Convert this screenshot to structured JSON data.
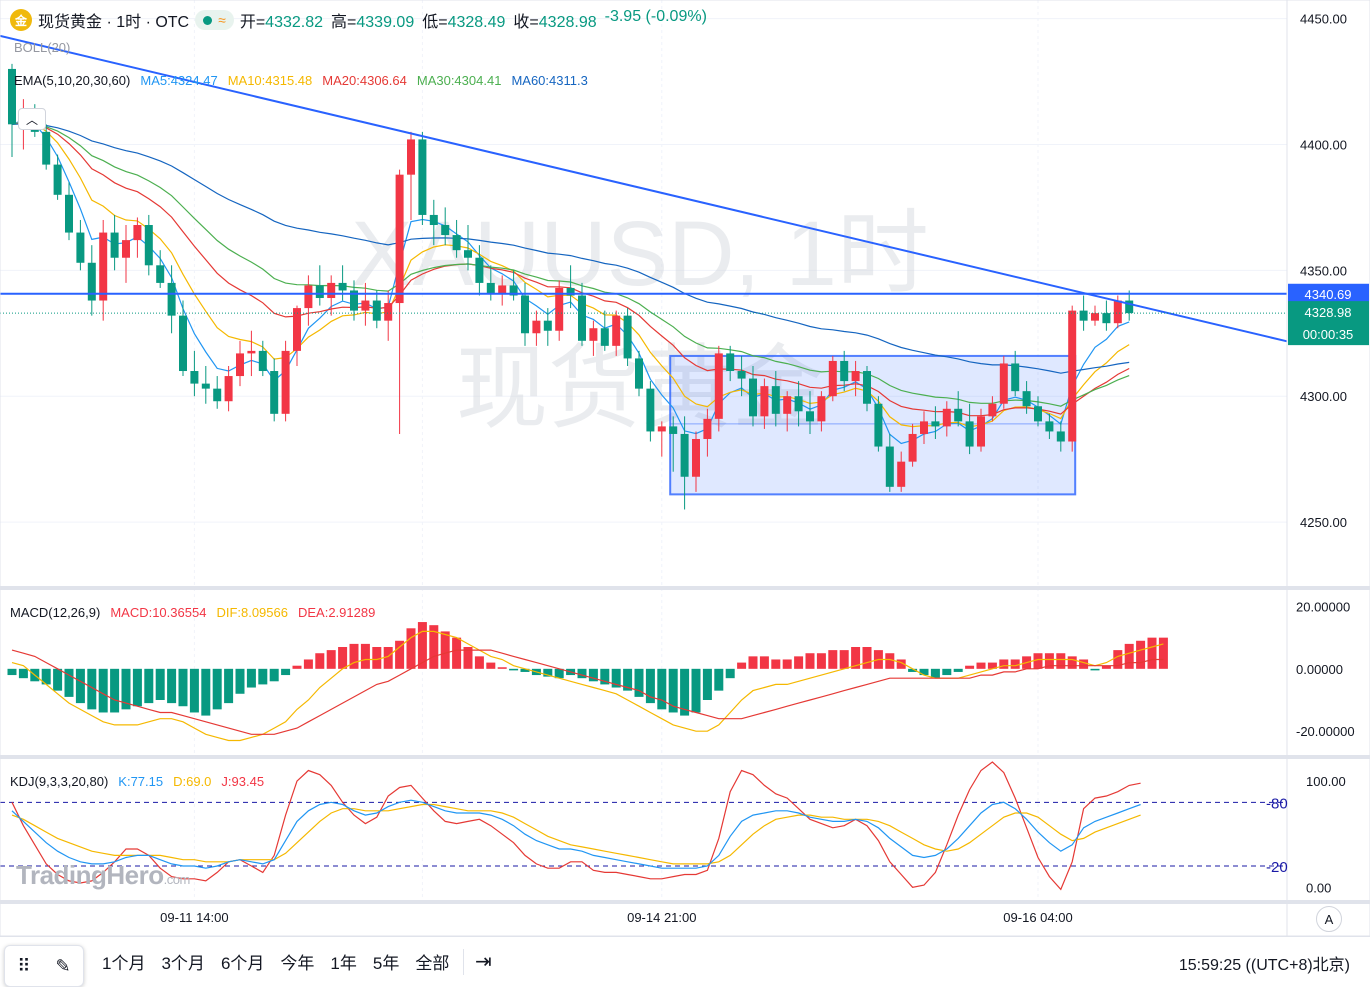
{
  "header": {
    "symbol": "现货黄金 · 1时 · OTC",
    "open_label": "开=",
    "open": "4332.82",
    "high_label": "高=",
    "high": "4339.09",
    "low_label": "低=",
    "low": "4328.49",
    "close_label": "收=",
    "close": "4328.98",
    "change": "-3.95 (-0.09%)"
  },
  "indicators": {
    "boll": "BOLL(20)",
    "ema": "EMA(5,10,20,30,60)",
    "ma5": "MA5:4324.47",
    "ma10": "MA10:4315.48",
    "ma20": "MA20:4306.64",
    "ma30": "MA30:4304.41",
    "ma60": "MA60:4311.3",
    "macd_title": "MACD(12,26,9)",
    "macd_val": "MACD:10.36554",
    "dif_val": "DIF:8.09566",
    "dea_val": "DEA:2.91289",
    "kdj_title": "KDJ(9,3,3,20,80)",
    "k_val": "K:77.15",
    "d_val": "D:69.0",
    "j_val": "J:93.45"
  },
  "price_axis": {
    "ticks": [
      "4450.00",
      "4400.00",
      "4350.00",
      "4300.00",
      "4250.00"
    ],
    "hline_label": "4340.69",
    "last_price": "4328.98",
    "countdown": "00:00:35"
  },
  "macd_axis": {
    "ticks": [
      "20.00000",
      "0.00000",
      "-20.00000"
    ]
  },
  "kdj_axis": {
    "ticks": [
      "100.00",
      "0.00"
    ],
    "levels": [
      "80",
      "20"
    ]
  },
  "time_axis": {
    "labels": [
      "09-11 14:00",
      "09-14 21:00",
      "09-16 04:00"
    ]
  },
  "watermark": {
    "symbol": "XAUUSD, 1时",
    "name": "现货黄金"
  },
  "logo_text": "TradingHero",
  "logo_suffix": ".com",
  "bottom_bar": {
    "ranges": [
      "1个月",
      "3个月",
      "6个月",
      "今年",
      "1年",
      "5年",
      "全部"
    ],
    "clock": "15:59:25 ((UTC+8)北京)",
    "autoscale": "A"
  },
  "colors": {
    "up": "#f23645",
    "down": "#089981",
    "ma5": "#2196f3",
    "ma10": "#f5b800",
    "ma20": "#e53935",
    "ma30": "#4caf50",
    "ma60": "#1565c0",
    "trend": "#2962ff"
  },
  "chart_data": {
    "type": "candlestick",
    "symbol": "XAUUSD",
    "timeframe": "1h",
    "x": [
      "09-11 14:00",
      "09-14 21:00",
      "09-16 04:00"
    ],
    "ylim": [
      4225,
      4455
    ],
    "candles": [
      [
        4430,
        4432,
        4395,
        4408
      ],
      [
        4408,
        4418,
        4398,
        4413
      ],
      [
        4413,
        4416,
        4403,
        4405
      ],
      [
        4405,
        4408,
        4390,
        4392
      ],
      [
        4392,
        4396,
        4378,
        4380
      ],
      [
        4380,
        4385,
        4362,
        4365
      ],
      [
        4365,
        4370,
        4350,
        4353
      ],
      [
        4353,
        4360,
        4332,
        4338
      ],
      [
        4338,
        4370,
        4330,
        4365
      ],
      [
        4365,
        4372,
        4350,
        4355
      ],
      [
        4355,
        4368,
        4345,
        4362
      ],
      [
        4362,
        4371,
        4355,
        4368
      ],
      [
        4368,
        4372,
        4348,
        4352
      ],
      [
        4352,
        4358,
        4343,
        4345
      ],
      [
        4345,
        4352,
        4325,
        4332
      ],
      [
        4332,
        4338,
        4308,
        4310
      ],
      [
        4310,
        4318,
        4300,
        4305
      ],
      [
        4305,
        4312,
        4297,
        4303
      ],
      [
        4303,
        4308,
        4295,
        4298
      ],
      [
        4298,
        4312,
        4294,
        4308
      ],
      [
        4308,
        4322,
        4304,
        4317
      ],
      [
        4317,
        4326,
        4308,
        4318
      ],
      [
        4318,
        4322,
        4308,
        4310
      ],
      [
        4310,
        4315,
        4290,
        4293
      ],
      [
        4293,
        4322,
        4290,
        4318
      ],
      [
        4318,
        4336,
        4312,
        4335
      ],
      [
        4335,
        4348,
        4328,
        4344
      ],
      [
        4344,
        4352,
        4336,
        4339
      ],
      [
        4339,
        4348,
        4332,
        4345
      ],
      [
        4345,
        4352,
        4338,
        4342
      ],
      [
        4342,
        4346,
        4330,
        4334
      ],
      [
        4334,
        4345,
        4328,
        4338
      ],
      [
        4338,
        4342,
        4327,
        4330
      ],
      [
        4330,
        4342,
        4322,
        4337
      ],
      [
        4337,
        4390,
        4285,
        4388
      ],
      [
        4388,
        4405,
        4370,
        4402
      ],
      [
        4402,
        4405,
        4368,
        4372
      ],
      [
        4372,
        4378,
        4360,
        4368
      ],
      [
        4368,
        4375,
        4360,
        4364
      ],
      [
        4364,
        4370,
        4355,
        4358
      ],
      [
        4358,
        4368,
        4350,
        4355
      ],
      [
        4355,
        4360,
        4340,
        4345
      ],
      [
        4345,
        4352,
        4338,
        4341
      ],
      [
        4341,
        4348,
        4336,
        4344
      ],
      [
        4344,
        4350,
        4338,
        4340
      ],
      [
        4340,
        4345,
        4320,
        4325
      ],
      [
        4325,
        4334,
        4320,
        4330
      ],
      [
        4330,
        4335,
        4320,
        4326
      ],
      [
        4326,
        4346,
        4322,
        4343
      ],
      [
        4343,
        4352,
        4335,
        4340
      ],
      [
        4340,
        4345,
        4320,
        4322
      ],
      [
        4322,
        4330,
        4316,
        4327
      ],
      [
        4327,
        4334,
        4318,
        4320
      ],
      [
        4320,
        4334,
        4316,
        4332
      ],
      [
        4332,
        4335,
        4312,
        4315
      ],
      [
        4315,
        4318,
        4300,
        4303
      ],
      [
        4303,
        4306,
        4282,
        4286
      ],
      [
        4286,
        4290,
        4276,
        4288
      ],
      [
        4288,
        4292,
        4270,
        4285
      ],
      [
        4285,
        4292,
        4255,
        4268
      ],
      [
        4268,
        4286,
        4262,
        4283
      ],
      [
        4283,
        4295,
        4276,
        4291
      ],
      [
        4291,
        4320,
        4286,
        4317
      ],
      [
        4317,
        4320,
        4306,
        4310
      ],
      [
        4310,
        4316,
        4300,
        4307
      ],
      [
        4307,
        4312,
        4288,
        4292
      ],
      [
        4292,
        4307,
        4287,
        4304
      ],
      [
        4304,
        4310,
        4288,
        4293
      ],
      [
        4293,
        4302,
        4286,
        4300
      ],
      [
        4300,
        4306,
        4288,
        4294
      ],
      [
        4294,
        4302,
        4285,
        4290
      ],
      [
        4290,
        4302,
        4286,
        4300
      ],
      [
        4300,
        4316,
        4298,
        4314
      ],
      [
        4314,
        4318,
        4302,
        4306
      ],
      [
        4306,
        4314,
        4300,
        4310
      ],
      [
        4310,
        4312,
        4294,
        4297
      ],
      [
        4297,
        4300,
        4278,
        4280
      ],
      [
        4280,
        4285,
        4262,
        4264
      ],
      [
        4264,
        4278,
        4262,
        4274
      ],
      [
        4274,
        4289,
        4272,
        4285
      ],
      [
        4285,
        4294,
        4281,
        4290
      ],
      [
        4290,
        4296,
        4283,
        4288
      ],
      [
        4288,
        4298,
        4284,
        4295
      ],
      [
        4295,
        4302,
        4288,
        4290
      ],
      [
        4290,
        4297,
        4277,
        4280
      ],
      [
        4280,
        4295,
        4278,
        4292
      ],
      [
        4292,
        4300,
        4290,
        4297
      ],
      [
        4297,
        4316,
        4295,
        4313
      ],
      [
        4313,
        4318,
        4300,
        4302
      ],
      [
        4302,
        4306,
        4293,
        4296
      ],
      [
        4296,
        4300,
        4288,
        4290
      ],
      [
        4290,
        4293,
        4283,
        4286
      ],
      [
        4286,
        4290,
        4278,
        4282
      ],
      [
        4282,
        4336,
        4278,
        4334
      ],
      [
        4334,
        4340,
        4326,
        4330
      ],
      [
        4330,
        4336,
        4328,
        4333
      ],
      [
        4333,
        4338,
        4326,
        4329
      ],
      [
        4329,
        4340,
        4327,
        4338
      ],
      [
        4338,
        4342,
        4330,
        4333
      ]
    ],
    "trendline": {
      "from": [
        0,
        4442
      ],
      "to": [
        107,
        4327
      ]
    },
    "horizontal_line": 4340.69,
    "range_box": {
      "from": 58,
      "to": 93,
      "top": 4316,
      "bottom": 4261,
      "mid": 4289
    },
    "macd": {
      "ylim": [
        -27,
        24
      ],
      "hist": [
        -2,
        -3,
        -4,
        -5,
        -7,
        -9,
        -11,
        -13,
        -14,
        -14,
        -13,
        -12,
        -11,
        -10,
        -11,
        -12,
        -14,
        -15,
        -13,
        -11,
        -8,
        -6,
        -5,
        -4,
        -2,
        1,
        3,
        5,
        6,
        7,
        8,
        8,
        7,
        7,
        9,
        13,
        15,
        14,
        12,
        10,
        7,
        4,
        2,
        0.5,
        -0.5,
        -1,
        -2,
        -2.5,
        -3,
        -2,
        -3,
        -4,
        -5,
        -6,
        -7,
        -9,
        -11,
        -13,
        -14,
        -15,
        -14,
        -10,
        -7,
        -3,
        2,
        4,
        4,
        3,
        3,
        4,
        5,
        5,
        6,
        6,
        7,
        7,
        6,
        5,
        3,
        -1,
        -2,
        -3,
        -2,
        -1,
        1,
        2,
        2,
        3,
        3,
        4,
        5,
        5,
        5,
        4,
        3,
        -0.5,
        1,
        6,
        8,
        9,
        10,
        10
      ],
      "dif": [
        2,
        1,
        -2,
        -5,
        -8,
        -11,
        -13,
        -15,
        -17,
        -18,
        -18,
        -18,
        -17,
        -16,
        -16,
        -17,
        -19,
        -21,
        -22,
        -23,
        -23,
        -22,
        -21,
        -19,
        -17,
        -13,
        -10,
        -6,
        -3,
        0,
        2,
        3,
        3,
        4,
        7,
        10,
        12,
        12,
        11,
        10,
        8,
        6,
        4,
        3,
        1,
        0,
        -1,
        -2,
        -3,
        -4,
        -5,
        -6,
        -7,
        -8,
        -10,
        -12,
        -14,
        -16,
        -18,
        -19,
        -20,
        -20,
        -18,
        -14,
        -10,
        -7,
        -6,
        -5,
        -5,
        -4,
        -3,
        -2,
        -1,
        0,
        1,
        2,
        3,
        3,
        2,
        0,
        -2,
        -3,
        -3,
        -3,
        -2,
        -1,
        0,
        1,
        1,
        2,
        3,
        3,
        3,
        3,
        2,
        1,
        2,
        4,
        5,
        6,
        7,
        8
      ],
      "dea": [
        6,
        5,
        4,
        2,
        0,
        -2,
        -4,
        -6,
        -8,
        -10,
        -11,
        -12,
        -13,
        -14,
        -14,
        -15,
        -16,
        -17,
        -18,
        -19,
        -20,
        -21,
        -21,
        -21,
        -20,
        -19,
        -17,
        -15,
        -13,
        -11,
        -9,
        -7,
        -5,
        -4,
        -2,
        0,
        2,
        4,
        5,
        6,
        6,
        6,
        6,
        5,
        4,
        3,
        2,
        1,
        0,
        -1,
        -2,
        -3,
        -4,
        -5,
        -6,
        -7,
        -9,
        -10,
        -12,
        -13,
        -14,
        -15,
        -16,
        -16,
        -16,
        -15,
        -14,
        -13,
        -12,
        -11,
        -10,
        -9,
        -8,
        -7,
        -6,
        -5,
        -4,
        -3,
        -3,
        -3,
        -3,
        -3,
        -3,
        -3,
        -3,
        -2,
        -2,
        -1,
        -1,
        0,
        0,
        1,
        1,
        1,
        1,
        1,
        1,
        1,
        2,
        2,
        3,
        3
      ]
    },
    "kdj": {
      "ylim": [
        -12,
        118
      ],
      "k": [
        72,
        62,
        52,
        42,
        34,
        28,
        24,
        22,
        22,
        24,
        28,
        30,
        30,
        26,
        22,
        20,
        20,
        18,
        20,
        24,
        26,
        24,
        22,
        26,
        44,
        62,
        72,
        78,
        80,
        78,
        72,
        68,
        70,
        76,
        80,
        82,
        80,
        76,
        72,
        70,
        70,
        70,
        68,
        64,
        58,
        50,
        44,
        40,
        36,
        36,
        34,
        30,
        28,
        26,
        24,
        22,
        20,
        18,
        18,
        18,
        18,
        20,
        30,
        48,
        62,
        68,
        70,
        72,
        72,
        70,
        66,
        64,
        62,
        62,
        64,
        62,
        56,
        46,
        38,
        30,
        28,
        30,
        36,
        46,
        58,
        70,
        78,
        80,
        74,
        64,
        52,
        42,
        34,
        40,
        56,
        62,
        66,
        70,
        74,
        78
      ],
      "d": [
        68,
        64,
        58,
        52,
        46,
        42,
        38,
        34,
        32,
        30,
        30,
        30,
        30,
        30,
        28,
        26,
        26,
        24,
        24,
        24,
        26,
        26,
        26,
        26,
        32,
        42,
        52,
        62,
        70,
        74,
        74,
        72,
        72,
        72,
        74,
        76,
        78,
        78,
        76,
        74,
        72,
        72,
        72,
        70,
        66,
        60,
        54,
        48,
        44,
        40,
        38,
        36,
        34,
        32,
        30,
        28,
        26,
        24,
        22,
        22,
        22,
        22,
        24,
        30,
        40,
        50,
        58,
        64,
        66,
        68,
        68,
        66,
        66,
        64,
        64,
        64,
        62,
        58,
        52,
        46,
        40,
        36,
        34,
        36,
        42,
        50,
        58,
        66,
        70,
        70,
        66,
        58,
        50,
        44,
        46,
        52,
        56,
        60,
        64,
        68
      ],
      "j": [
        80,
        58,
        40,
        22,
        12,
        6,
        4,
        6,
        14,
        24,
        36,
        36,
        30,
        18,
        10,
        8,
        8,
        6,
        14,
        24,
        26,
        20,
        14,
        30,
        68,
        100,
        110,
        106,
        96,
        80,
        68,
        60,
        66,
        86,
        94,
        96,
        84,
        72,
        62,
        60,
        62,
        64,
        58,
        50,
        42,
        30,
        22,
        18,
        18,
        24,
        24,
        16,
        14,
        14,
        12,
        10,
        8,
        8,
        10,
        12,
        12,
        16,
        46,
        90,
        110,
        106,
        96,
        88,
        84,
        74,
        64,
        60,
        56,
        58,
        64,
        58,
        44,
        24,
        12,
        0,
        2,
        14,
        40,
        68,
        92,
        110,
        118,
        108,
        84,
        56,
        28,
        10,
        -2,
        24,
        74,
        84,
        86,
        90,
        96,
        98
      ]
    }
  }
}
